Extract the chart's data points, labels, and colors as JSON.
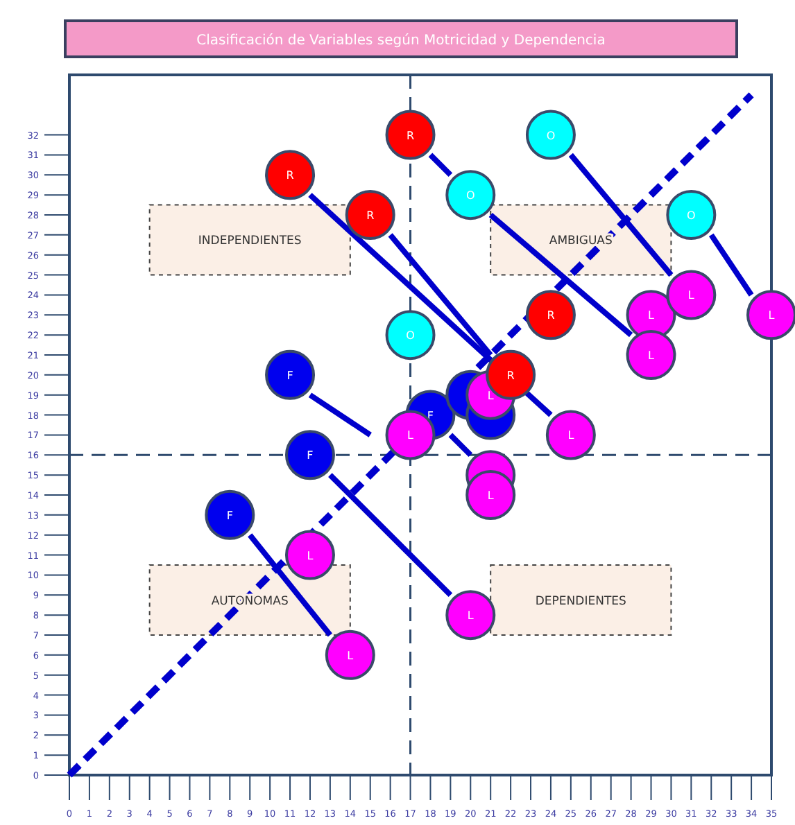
{
  "chart_data": {
    "type": "scatter",
    "title": "Clasificación de Variables según Motricidad y Dependencia",
    "xlim": [
      0,
      35
    ],
    "ylim": [
      0,
      35
    ],
    "xticks": [
      0,
      1,
      2,
      3,
      4,
      5,
      6,
      7,
      8,
      9,
      10,
      11,
      12,
      13,
      14,
      15,
      16,
      17,
      18,
      19,
      20,
      21,
      22,
      23,
      24,
      25,
      26,
      27,
      28,
      29,
      30,
      31,
      32,
      33,
      34,
      35
    ],
    "yticks": [
      0,
      1,
      2,
      3,
      4,
      5,
      6,
      7,
      8,
      9,
      10,
      11,
      12,
      13,
      14,
      15,
      16,
      17,
      18,
      19,
      20,
      21,
      22,
      23,
      24,
      25,
      26,
      27,
      28,
      29,
      30,
      31,
      32
    ],
    "grid": false,
    "legend": false,
    "annotations": [
      "INDEPENDIENTES",
      "AMBIGUAS",
      "AUTONOMAS",
      "DEPENDIENTES"
    ],
    "ref_lines": [
      {
        "axis": "x",
        "value": 17,
        "color": "#2e4a6e",
        "line_style": "dashed"
      },
      {
        "axis": "y",
        "value": 16,
        "color": "#2e4a6e",
        "line_style": "dashed"
      }
    ],
    "series": [
      {
        "type": "line",
        "color": "#0000cc",
        "line_style": "dashed",
        "marker": "none",
        "x": [
          0,
          34
        ],
        "values": [
          0,
          34
        ]
      },
      {
        "type": "line",
        "color": "#0000cc",
        "line_style": "solid",
        "marker": "none",
        "x": [
          12,
          24
        ],
        "values": [
          29,
          18
        ]
      },
      {
        "type": "line",
        "color": "#0000cc",
        "line_style": "solid",
        "marker": "none",
        "x": [
          16,
          21
        ],
        "values": [
          27,
          21
        ]
      },
      {
        "type": "line",
        "color": "#0000cc",
        "line_style": "solid",
        "marker": "none",
        "x": [
          18,
          19
        ],
        "values": [
          31,
          30
        ]
      },
      {
        "type": "line",
        "color": "#0000cc",
        "line_style": "solid",
        "marker": "none",
        "x": [
          21,
          28
        ],
        "values": [
          28,
          22
        ]
      },
      {
        "type": "line",
        "color": "#0000cc",
        "line_style": "solid",
        "marker": "none",
        "x": [
          25,
          30
        ],
        "values": [
          31,
          25
        ]
      },
      {
        "type": "line",
        "color": "#0000cc",
        "line_style": "solid",
        "marker": "none",
        "x": [
          32,
          34
        ],
        "values": [
          27,
          24
        ]
      },
      {
        "type": "line",
        "color": "#0000cc",
        "line_style": "solid",
        "marker": "none",
        "x": [
          12,
          15
        ],
        "values": [
          19,
          17
        ]
      },
      {
        "type": "line",
        "color": "#0000cc",
        "line_style": "solid",
        "marker": "none",
        "x": [
          13,
          19
        ],
        "values": [
          15,
          9
        ]
      },
      {
        "type": "line",
        "color": "#0000cc",
        "line_style": "solid",
        "marker": "none",
        "x": [
          9,
          13
        ],
        "values": [
          12,
          7
        ]
      },
      {
        "type": "line",
        "color": "#0000cc",
        "line_style": "solid",
        "marker": "none",
        "x": [
          19,
          20
        ],
        "values": [
          17,
          16
        ]
      },
      {
        "name": "F",
        "color": "#0000ee",
        "marker": "circle",
        "x": [
          11,
          12,
          8,
          18,
          20,
          21
        ],
        "values": [
          20,
          16,
          13,
          18,
          19,
          18
        ]
      },
      {
        "name": "L",
        "color": "#ff00ff",
        "marker": "circle",
        "x": [
          21,
          17,
          21,
          21,
          25,
          29,
          29,
          31,
          35,
          12,
          14,
          20
        ],
        "values": [
          19,
          17,
          15,
          14,
          17,
          23,
          21,
          24,
          23,
          11,
          6,
          8
        ]
      },
      {
        "name": "R",
        "color": "#ff0000",
        "marker": "circle",
        "x": [
          11,
          17,
          15,
          24,
          22
        ],
        "values": [
          30,
          32,
          28,
          23,
          20
        ]
      },
      {
        "name": "O",
        "color": "#00ffff",
        "marker": "circle",
        "x": [
          17,
          20,
          24,
          31
        ],
        "values": [
          22,
          29,
          32,
          28
        ]
      }
    ]
  }
}
